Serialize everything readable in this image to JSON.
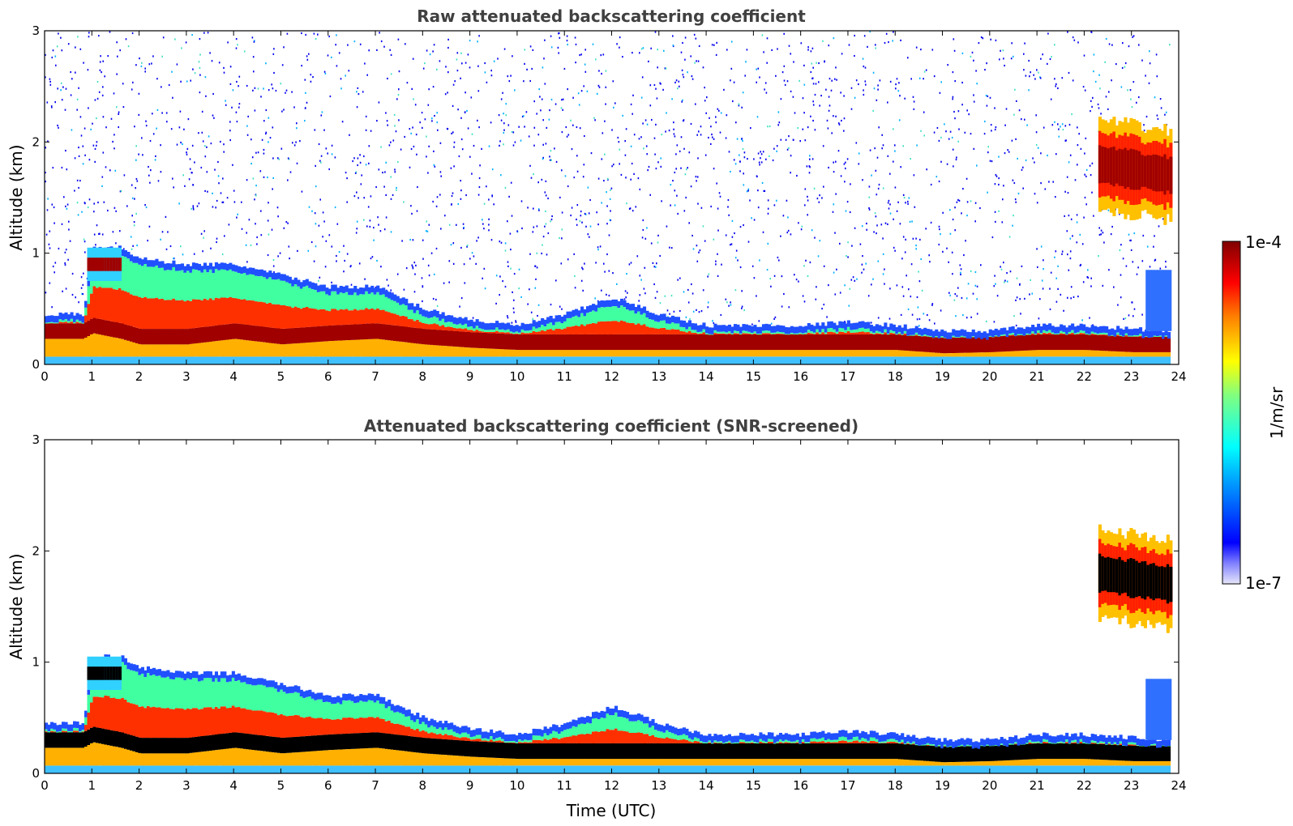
{
  "colors": {
    "colormap": [
      "#e6e6fa",
      "#0000ff",
      "#00a0ff",
      "#00ffff",
      "#80ff80",
      "#ffff00",
      "#ff8000",
      "#ff0000",
      "#800000"
    ],
    "screened_core": "#000000"
  },
  "chart_data": [
    {
      "type": "heatmap",
      "title": "Raw attenuated backscattering coefficient",
      "xlabel": "",
      "ylabel": "Altitude (km)",
      "xlim": [
        0,
        24
      ],
      "ylim": [
        0,
        3
      ],
      "xticks": [
        "0",
        "1",
        "2",
        "3",
        "4",
        "5",
        "6",
        "7",
        "8",
        "9",
        "10",
        "11",
        "12",
        "13",
        "14",
        "15",
        "16",
        "17",
        "18",
        "19",
        "20",
        "21",
        "22",
        "23",
        "24"
      ],
      "yticks": [
        "0",
        "1",
        "2",
        "3"
      ],
      "noise_above_layer": true,
      "layers": [
        {
          "name_visible": false,
          "t": [
            0,
            0.8,
            1,
            1.6,
            2,
            3,
            4,
            5,
            6,
            7,
            8,
            9,
            10,
            11,
            12,
            13,
            14,
            15,
            16,
            17,
            18,
            19,
            20,
            21,
            22,
            23,
            23.8
          ],
          "top": [
            0.45,
            0.45,
            1.05,
            1.05,
            0.95,
            0.9,
            0.9,
            0.8,
            0.7,
            0.7,
            0.5,
            0.4,
            0.35,
            0.45,
            0.6,
            0.45,
            0.35,
            0.35,
            0.35,
            0.38,
            0.35,
            0.3,
            0.3,
            0.35,
            0.35,
            0.32,
            0.3
          ],
          "core": [
            0.3,
            0.3,
            0.35,
            0.3,
            0.25,
            0.25,
            0.3,
            0.25,
            0.28,
            0.3,
            0.25,
            0.22,
            0.2,
            0.2,
            0.2,
            0.2,
            0.2,
            0.2,
            0.2,
            0.2,
            0.2,
            0.17,
            0.18,
            0.2,
            0.2,
            0.18,
            0.18
          ]
        },
        {
          "t": [
            0.9,
            1.6
          ],
          "center": [
            0.9,
            0.9
          ],
          "thickness": 0.15
        },
        {
          "t": [
            22.3,
            23.8
          ],
          "center": [
            1.8,
            1.7
          ],
          "thickness": 0.4
        }
      ]
    },
    {
      "type": "heatmap",
      "title": "Attenuated backscattering coefficient (SNR-screened)",
      "xlabel": "Time (UTC)",
      "ylabel": "Altitude (km)",
      "xlim": [
        0,
        24
      ],
      "ylim": [
        0,
        3
      ],
      "xticks": [
        "0",
        "1",
        "2",
        "3",
        "4",
        "5",
        "6",
        "7",
        "8",
        "9",
        "10",
        "11",
        "12",
        "13",
        "14",
        "15",
        "16",
        "17",
        "18",
        "19",
        "20",
        "21",
        "22",
        "23",
        "24"
      ],
      "yticks": [
        "0",
        "1",
        "2",
        "3"
      ],
      "noise_above_layer": false
    }
  ],
  "colorbar": {
    "max_label": "1e-4",
    "min_label": "1e-7",
    "unit_label": "1/m/sr",
    "range": [
      1e-07,
      0.0001
    ],
    "scale": "log"
  }
}
